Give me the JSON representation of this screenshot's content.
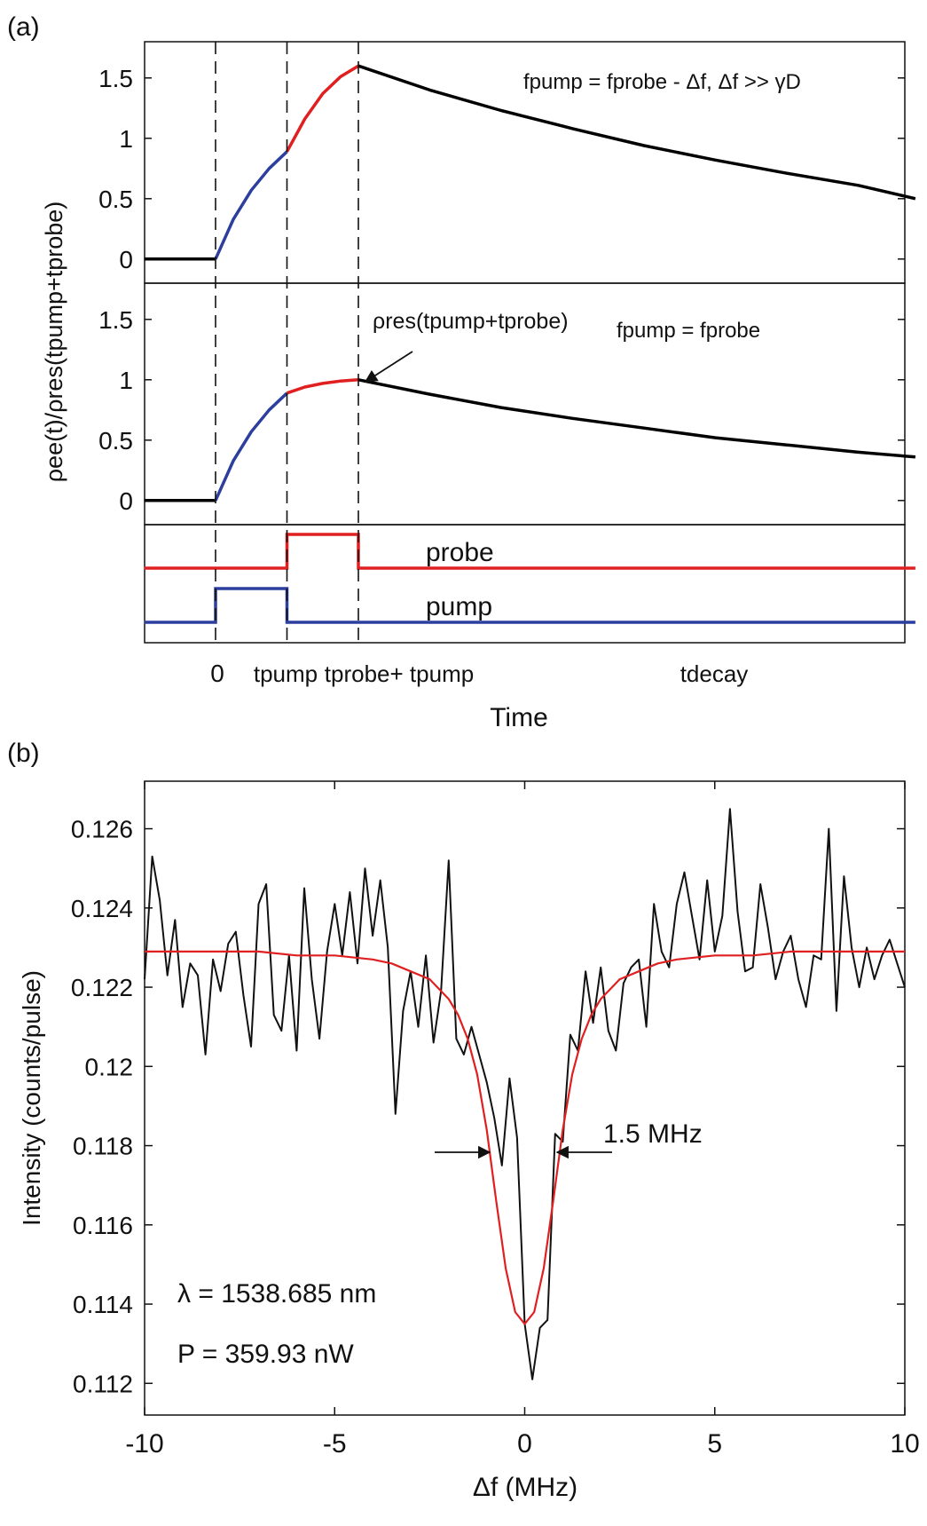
{
  "panel_a": {
    "label": "(a)",
    "ylabel": "ρee(t)/ρres(tpump+tprobe)",
    "xlabel": "Time",
    "ann_top": "fpump = fprobe - Δf, Δf >> γD",
    "ann_mid": "fpump = fprobe",
    "ann_arrow": "ρres(tpump+tprobe)",
    "probe_label": "probe",
    "pump_label": "pump",
    "xticks": [
      "0",
      "tpump",
      "tprobe+ tpump",
      "tdecay"
    ]
  },
  "panel_b": {
    "label": "(b)",
    "lambda_text": "λ = 1538.685 nm",
    "power_text": "P = 359.93 nW",
    "width_text": "1.5 MHz"
  },
  "chart_data": [
    {
      "type": "line",
      "panel": "a-top",
      "ylim": [
        -0.2,
        1.8
      ],
      "yticks": [
        0,
        0.5,
        1,
        1.5
      ],
      "x_events": {
        "start": 0,
        "tpump": 1,
        "tprobe_plus_tpump": 2
      },
      "series": [
        {
          "name": "",
          "segment": "before",
          "color": "#000000",
          "x": [
            -1,
            0
          ],
          "y": [
            0,
            0
          ]
        },
        {
          "name": "",
          "segment": "pump",
          "color": "#2c3e9e",
          "x": [
            0,
            0.25,
            0.5,
            0.75,
            1
          ],
          "y": [
            0,
            0.33,
            0.57,
            0.75,
            0.89
          ]
        },
        {
          "name": "",
          "segment": "probe",
          "color": "#e02020",
          "x": [
            1,
            1.25,
            1.5,
            1.75,
            2
          ],
          "y": [
            0.89,
            1.16,
            1.37,
            1.51,
            1.6
          ]
        },
        {
          "name": "",
          "segment": "decay",
          "color": "#000000",
          "x": [
            2,
            3,
            4,
            5,
            6,
            7,
            8,
            9,
            9.8
          ],
          "y": [
            1.6,
            1.4,
            1.23,
            1.08,
            0.94,
            0.82,
            0.71,
            0.61,
            0.5
          ]
        }
      ]
    },
    {
      "type": "line",
      "panel": "a-middle",
      "ylim": [
        -0.2,
        1.8
      ],
      "yticks": [
        0,
        0.5,
        1,
        1.5
      ],
      "series": [
        {
          "name": "",
          "segment": "before",
          "color": "#000000",
          "x": [
            -1,
            0
          ],
          "y": [
            0,
            0
          ]
        },
        {
          "name": "",
          "segment": "pump",
          "color": "#2c3e9e",
          "x": [
            0,
            0.25,
            0.5,
            0.75,
            1
          ],
          "y": [
            0,
            0.33,
            0.57,
            0.75,
            0.89
          ]
        },
        {
          "name": "",
          "segment": "probe",
          "color": "#e02020",
          "x": [
            1,
            1.25,
            1.5,
            1.75,
            2
          ],
          "y": [
            0.89,
            0.94,
            0.97,
            0.99,
            1.0
          ]
        },
        {
          "name": "",
          "segment": "decay",
          "color": "#000000",
          "x": [
            2,
            3,
            4,
            5,
            6,
            7,
            8,
            9,
            9.8
          ],
          "y": [
            1.0,
            0.88,
            0.77,
            0.68,
            0.6,
            0.52,
            0.46,
            0.4,
            0.36
          ]
        }
      ]
    },
    {
      "type": "line",
      "panel": "a-pulses",
      "series": [
        {
          "name": "probe",
          "color": "#e02020",
          "x": [
            -1,
            1,
            1,
            2,
            2,
            9.8
          ],
          "y": [
            0,
            0,
            1,
            1,
            0,
            0
          ]
        },
        {
          "name": "pump",
          "color": "#2c3e9e",
          "x": [
            -1,
            0,
            0,
            1,
            1,
            9.8
          ],
          "y": [
            0,
            0,
            1,
            1,
            0,
            0
          ]
        }
      ]
    },
    {
      "type": "line",
      "panel": "b",
      "xlabel": "Δf (MHz)",
      "ylabel": "Intensity (counts/pulse)",
      "xlim": [
        -10,
        10
      ],
      "ylim": [
        0.1112,
        0.1272
      ],
      "xticks": [
        -10,
        -5,
        0,
        5,
        10
      ],
      "yticks": [
        0.112,
        0.114,
        0.116,
        0.118,
        0.12,
        0.122,
        0.124,
        0.126
      ],
      "series": [
        {
          "name": "",
          "color": "#111111",
          "x": [
            -10,
            -9.8,
            -9.6,
            -9.4,
            -9.2,
            -9.0,
            -8.8,
            -8.6,
            -8.4,
            -8.2,
            -8.0,
            -7.8,
            -7.6,
            -7.4,
            -7.2,
            -7.0,
            -6.8,
            -6.6,
            -6.4,
            -6.2,
            -6.0,
            -5.8,
            -5.6,
            -5.4,
            -5.2,
            -5.0,
            -4.8,
            -4.6,
            -4.4,
            -4.2,
            -4.0,
            -3.8,
            -3.6,
            -3.4,
            -3.2,
            -3.0,
            -2.8,
            -2.6,
            -2.4,
            -2.2,
            -2.0,
            -1.8,
            -1.6,
            -1.4,
            -1.2,
            -1.0,
            -0.8,
            -0.6,
            -0.4,
            -0.2,
            0.0,
            0.2,
            0.4,
            0.6,
            0.8,
            1.0,
            1.2,
            1.4,
            1.6,
            1.8,
            2.0,
            2.2,
            2.4,
            2.6,
            2.8,
            3.0,
            3.2,
            3.4,
            3.6,
            3.8,
            4.0,
            4.2,
            4.4,
            4.6,
            4.8,
            5.0,
            5.2,
            5.4,
            5.6,
            5.8,
            6.0,
            6.2,
            6.4,
            6.6,
            6.8,
            7.0,
            7.2,
            7.4,
            7.6,
            7.8,
            8.0,
            8.2,
            8.4,
            8.6,
            8.8,
            9.0,
            9.2,
            9.4,
            9.6,
            9.8,
            10.0
          ],
          "y": [
            0.1222,
            0.1253,
            0.1242,
            0.1223,
            0.1237,
            0.1215,
            0.1226,
            0.1223,
            0.1203,
            0.1227,
            0.1219,
            0.1231,
            0.1234,
            0.1218,
            0.1205,
            0.1241,
            0.1246,
            0.1213,
            0.1209,
            0.1228,
            0.1204,
            0.1245,
            0.1222,
            0.1207,
            0.1229,
            0.1241,
            0.1228,
            0.1244,
            0.1226,
            0.125,
            0.1233,
            0.1247,
            0.123,
            0.1188,
            0.1214,
            0.1224,
            0.121,
            0.1228,
            0.1206,
            0.1219,
            0.1252,
            0.1207,
            0.1203,
            0.121,
            0.1203,
            0.1196,
            0.1187,
            0.1175,
            0.1197,
            0.1182,
            0.1135,
            0.1121,
            0.1134,
            0.1136,
            0.1183,
            0.1181,
            0.1208,
            0.1204,
            0.1224,
            0.1211,
            0.1225,
            0.1209,
            0.1204,
            0.1221,
            0.1225,
            0.1227,
            0.121,
            0.1241,
            0.1229,
            0.1225,
            0.1241,
            0.1249,
            0.1238,
            0.1227,
            0.1247,
            0.1229,
            0.1238,
            0.1265,
            0.1239,
            0.1224,
            0.1225,
            0.1246,
            0.1235,
            0.1222,
            0.1229,
            0.1233,
            0.1222,
            0.1215,
            0.1228,
            0.1227,
            0.126,
            0.1214,
            0.1248,
            0.123,
            0.122,
            0.123,
            0.1222,
            0.1228,
            0.1232,
            0.1226,
            0.122
          ]
        },
        {
          "name": "",
          "color": "#e02020",
          "x": [
            -10,
            -9,
            -8,
            -7,
            -6,
            -5,
            -4,
            -3.5,
            -3,
            -2.5,
            -2,
            -1.75,
            -1.5,
            -1.25,
            -1,
            -0.75,
            -0.5,
            -0.25,
            0,
            0.25,
            0.5,
            0.75,
            1,
            1.25,
            1.5,
            1.75,
            2,
            2.5,
            3,
            3.5,
            4,
            5,
            6,
            7,
            8,
            9,
            10
          ],
          "y": [
            0.1229,
            0.1229,
            0.1229,
            0.1229,
            0.1228,
            0.1228,
            0.1227,
            0.1226,
            0.1224,
            0.1222,
            0.1217,
            0.1213,
            0.1207,
            0.1198,
            0.1184,
            0.1166,
            0.1149,
            0.1138,
            0.1135,
            0.1138,
            0.1149,
            0.1166,
            0.1184,
            0.1198,
            0.1207,
            0.1213,
            0.1217,
            0.1222,
            0.1224,
            0.1226,
            0.1227,
            0.1228,
            0.1228,
            0.1229,
            0.1229,
            0.1229,
            0.1229
          ]
        }
      ]
    }
  ]
}
